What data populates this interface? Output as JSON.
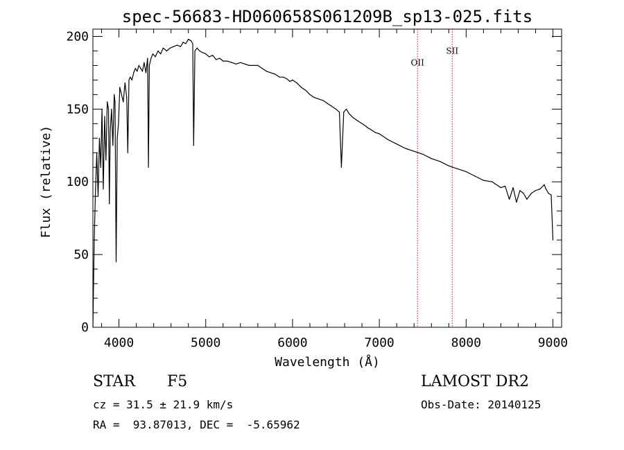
{
  "chart_data": {
    "type": "line",
    "title": "spec-56683-HD060658S061209B_sp13-025.fits",
    "xlabel": "Wavelength (Å)",
    "ylabel": "Flux (relative)",
    "xlim": [
      3700,
      9100
    ],
    "ylim": [
      0,
      205
    ],
    "x_ticks": [
      4000,
      5000,
      6000,
      7000,
      8000,
      9000
    ],
    "y_ticks": [
      0,
      50,
      100,
      150,
      200
    ],
    "grid": false,
    "line_color": "#000000",
    "marker_color": "#aa2222",
    "series": [
      {
        "x": [
          3700,
          3715,
          3730,
          3745,
          3760,
          3775,
          3790,
          3805,
          3820,
          3835,
          3850,
          3865,
          3880,
          3889,
          3900,
          3915,
          3930,
          3945,
          3955,
          3968,
          3980,
          3995,
          4010,
          4030,
          4050,
          4070,
          4090,
          4102,
          4115,
          4130,
          4150,
          4170,
          4190,
          4210,
          4230,
          4250,
          4270,
          4290,
          4310,
          4330,
          4340,
          4350,
          4370,
          4390,
          4420,
          4450,
          4480,
          4510,
          4550,
          4590,
          4630,
          4670,
          4710,
          4740,
          4770,
          4800,
          4830,
          4850,
          4861,
          4875,
          4900,
          4930,
          4960,
          5000,
          5040,
          5080,
          5120,
          5160,
          5200,
          5250,
          5300,
          5350,
          5400,
          5450,
          5500,
          5550,
          5600,
          5650,
          5700,
          5750,
          5800,
          5850,
          5890,
          5930,
          5970,
          6000,
          6050,
          6100,
          6150,
          6200,
          6250,
          6300,
          6350,
          6400,
          6450,
          6500,
          6540,
          6563,
          6590,
          6620,
          6650,
          6700,
          6750,
          6800,
          6850,
          6870,
          6900,
          6950,
          7000,
          7100,
          7200,
          7300,
          7400,
          7500,
          7600,
          7700,
          7800,
          7900,
          8000,
          8100,
          8200,
          8300,
          8400,
          8450,
          8498,
          8542,
          8580,
          8620,
          8662,
          8700,
          8750,
          8800,
          8850,
          8900,
          8920,
          8950,
          8980,
          9000
        ],
        "y": [
          0,
          60,
          95,
          120,
          90,
          130,
          110,
          150,
          95,
          145,
          115,
          155,
          150,
          85,
          135,
          150,
          125,
          160,
          155,
          45,
          130,
          140,
          165,
          160,
          155,
          168,
          158,
          120,
          170,
          172,
          170,
          175,
          178,
          176,
          180,
          178,
          176,
          182,
          175,
          185,
          110,
          180,
          185,
          188,
          186,
          190,
          188,
          192,
          190,
          192,
          193,
          194,
          193,
          196,
          195,
          198,
          197,
          195,
          125,
          190,
          192,
          190,
          189,
          188,
          186,
          187,
          184,
          185,
          183,
          183,
          182,
          181,
          182,
          181,
          180,
          180,
          180,
          178,
          176,
          175,
          174,
          172,
          172,
          171,
          169,
          170,
          168,
          165,
          163,
          160,
          158,
          157,
          156,
          154,
          152,
          150,
          148,
          110,
          148,
          150,
          147,
          144,
          142,
          140,
          138,
          137,
          136,
          134,
          133,
          129,
          126,
          123,
          121,
          119,
          116,
          114,
          111,
          109,
          107,
          104,
          101,
          100,
          96,
          97,
          88,
          96,
          86,
          94,
          92,
          88,
          92,
          94,
          95,
          98,
          95,
          92,
          91,
          60
        ]
      }
    ],
    "markers": [
      {
        "x": 7440,
        "label": "OII",
        "label_y": 180
      },
      {
        "x": 7840,
        "label": "SII",
        "label_y": 188
      }
    ]
  },
  "info": {
    "obj_class": "STAR",
    "obj_subclass": "F5",
    "survey": "LAMOST DR2",
    "cz": "cz = 31.5 ± 21.9 km/s",
    "obs_date": "Obs-Date: 20140125",
    "radec": "RA =  93.87013, DEC =  -5.65962"
  }
}
